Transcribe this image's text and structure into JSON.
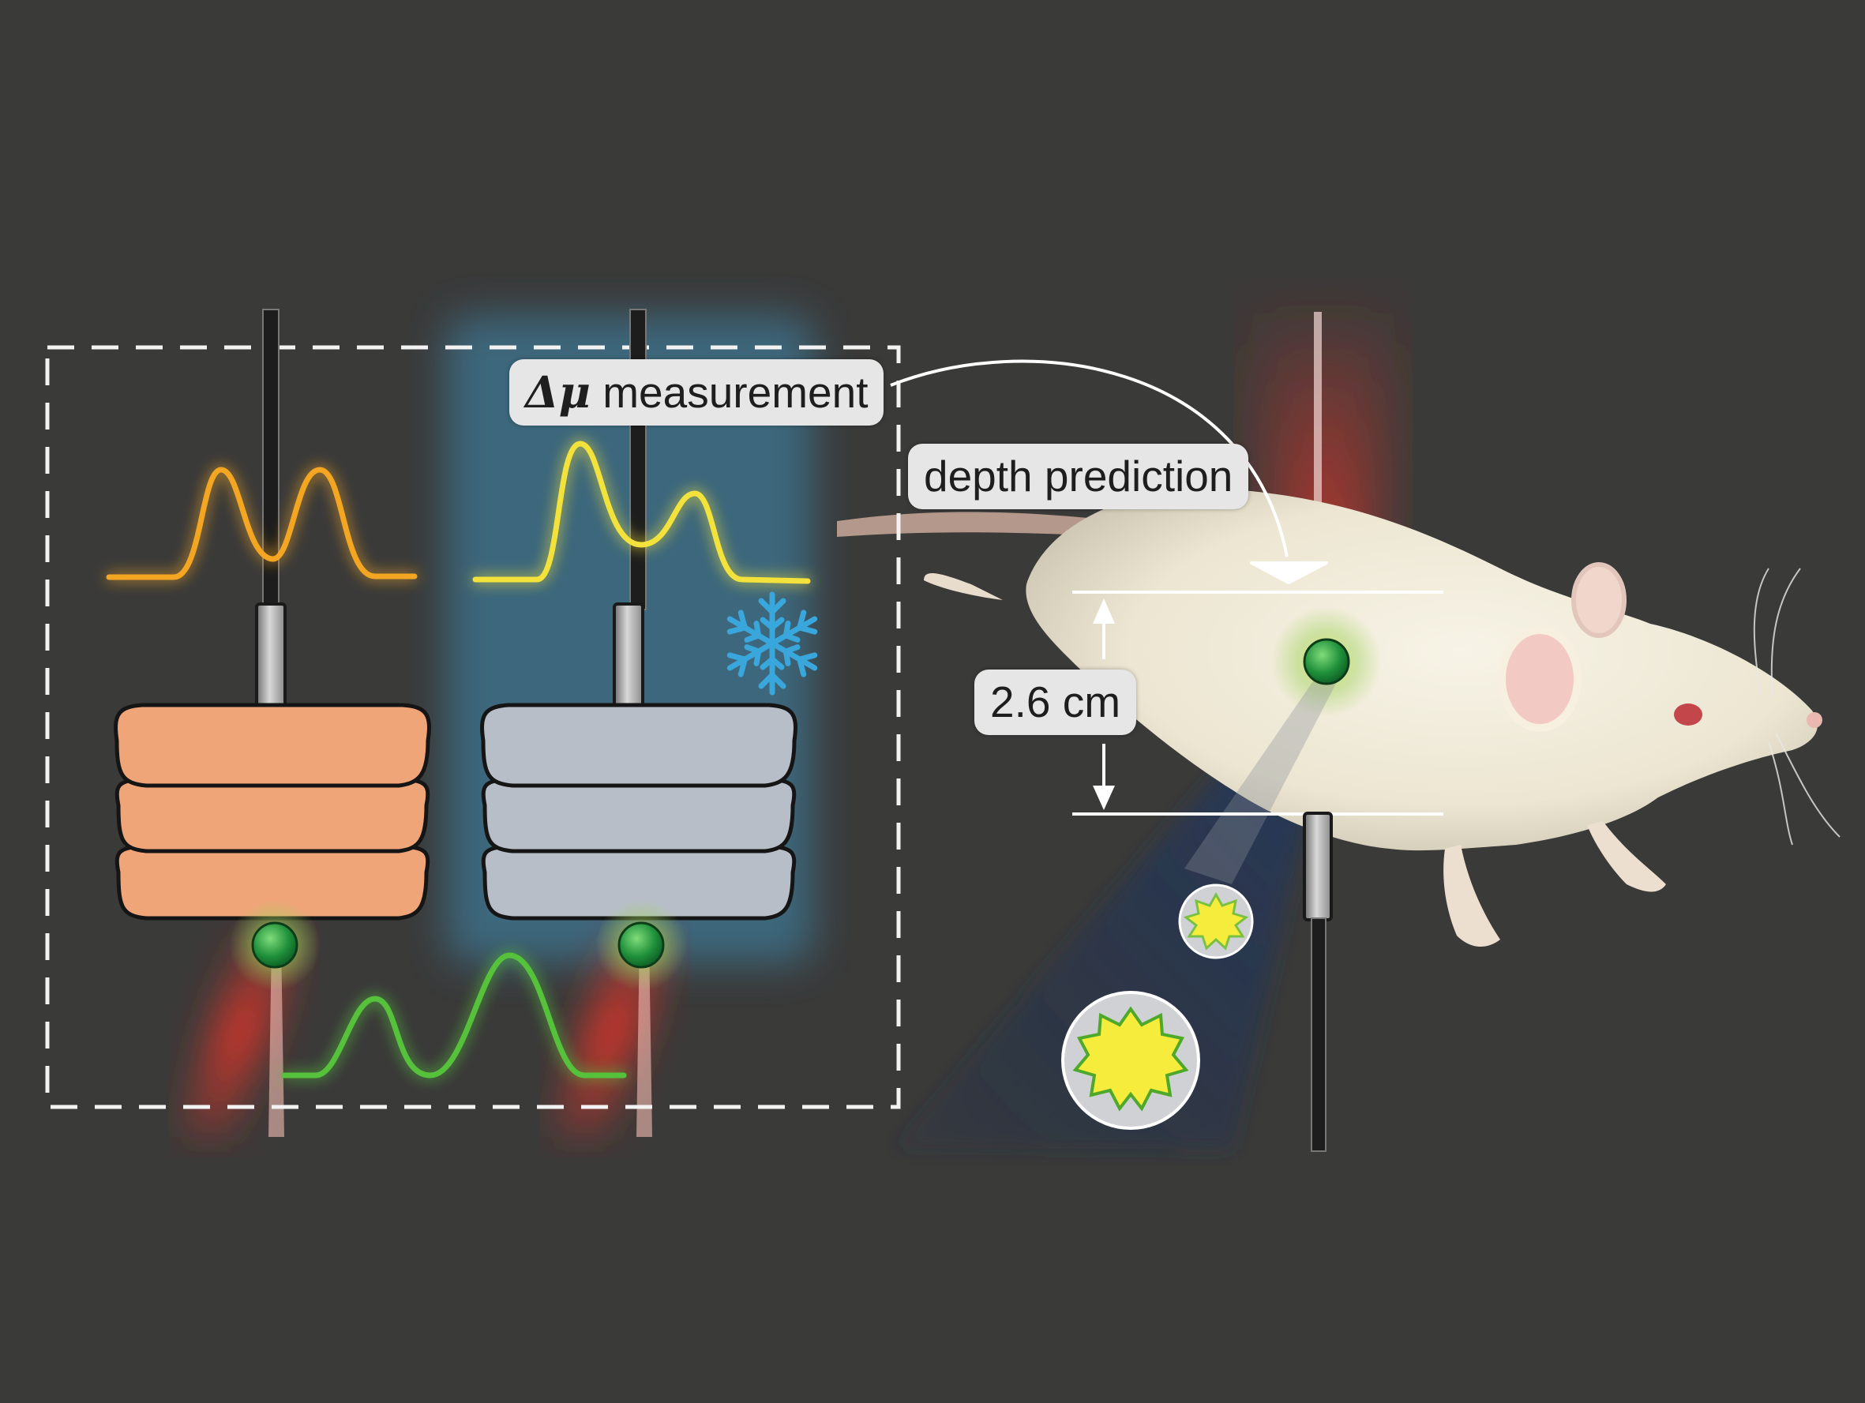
{
  "labels": {
    "delta_mu_symbol": "Δμ",
    "measurement": "measurement",
    "depth_prediction": "depth prediction",
    "depth_value": "2.6 cm"
  },
  "icons": [
    "snowflake-icon",
    "optical-fiber-icon",
    "nanoparticle-icon",
    "rat-illustration",
    "tissue-stack-icon"
  ],
  "colors": {
    "background": "#3a3a39",
    "warm_tissue": "#f0a579",
    "cooled_tissue": "#b7bec8",
    "cooling_panel": "#3e6f88",
    "orange_signal": "#f4a623",
    "yellow_signal": "#f2e23a",
    "green_signal": "#56c23a",
    "laser_red": "#e2352a",
    "snowflake": "#3aa7dc"
  }
}
